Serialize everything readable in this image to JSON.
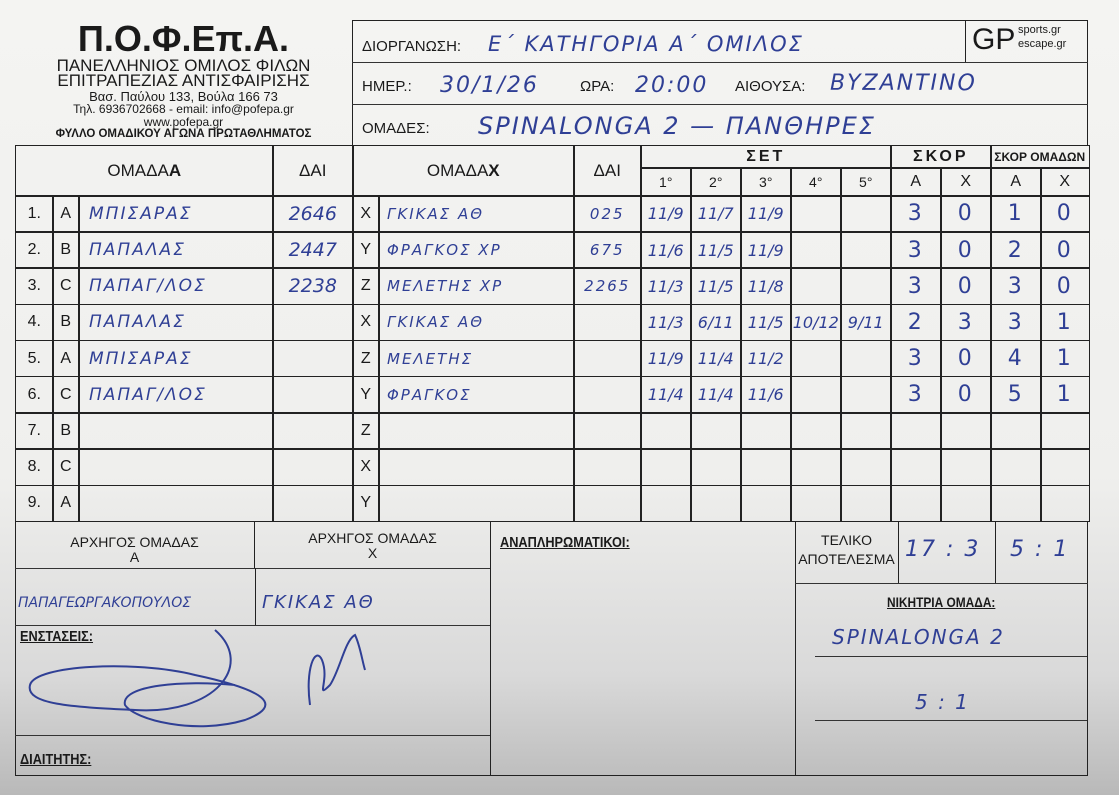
{
  "org": {
    "logo": "Π.Ο.Φ.Επ.Α.",
    "name_line1": "ΠΑΝΕΛΛΗΝΙΟΣ ΟΜΙΛΟΣ ΦΙΛΩΝ",
    "name_line2": "ΕΠΙΤΡΑΠΕΖΙΑΣ ΑΝΤΙΣΦΑΙΡΙΣΗΣ",
    "address": "Βασ. Παύλου 133, Βούλα 166 73",
    "contact": "Τηλ. 6936702668 - email: info@pofepa.gr",
    "website": "www.pofepa.gr",
    "form_title": "ΦΥΛΛΟ ΟΜΑΔΙΚΟΥ ΑΓΩΝΑ ΠΡΩΤΑΘΛΗΜΑΤΟΣ"
  },
  "sponsor": {
    "logo": "GP",
    "line1": "sports.gr",
    "line2": "escape.gr"
  },
  "match": {
    "competition_label": "ΔΙΟΡΓΑΝΩΣΗ:",
    "competition": "Ε΄ ΚΑΤΗΓΟΡΙΑ Α΄ ΟΜΙΛΟΣ",
    "date_label": "ΗΜΕΡ.:",
    "date": "30/1/26",
    "time_label": "ΩΡΑ:",
    "time": "20:00",
    "hall_label": "ΑΙΘΟΥΣΑ:",
    "hall": "ΒΥΖΑΝΤΙΝΟ",
    "teams_label": "ΟΜΑΔΕΣ:",
    "teams": "SPINALONGA 2 — ΠΑΝΘΗΡΕΣ"
  },
  "table": {
    "headers": {
      "team_a": "ΟΜΑΔΑ ",
      "team_a_bold": "Α",
      "dai": "ΔΑΙ",
      "team_x": "ΟΜΑΔΑ ",
      "team_x_bold": "Χ",
      "sets": "ΣΕΤ",
      "score": "ΣΚΟΡ",
      "team_score": "ΣΚΟΡ ΟΜΑΔΩΝ",
      "set_numbers": [
        "1°",
        "2°",
        "3°",
        "4°",
        "5°"
      ],
      "a": "Α",
      "x": "Χ"
    },
    "rows": [
      {
        "num": "1.",
        "la": "A",
        "pa": "ΜΠΙΣΑΡΑΣ",
        "da": "2646",
        "lx": "X",
        "px": "ΓΚΙΚΑΣ ΑΘ",
        "dx": "025",
        "sets": [
          "11/9",
          "11/7",
          "11/9",
          "",
          ""
        ],
        "sa": "3",
        "sx": "0",
        "ta": "1",
        "tx": "0"
      },
      {
        "num": "2.",
        "la": "B",
        "pa": "ΠΑΠΑΛΑΣ",
        "da": "2447",
        "lx": "Y",
        "px": "ΦΡΑΓΚΟΣ ΧΡ",
        "dx": "675",
        "sets": [
          "11/6",
          "11/5",
          "11/9",
          "",
          ""
        ],
        "sa": "3",
        "sx": "0",
        "ta": "2",
        "tx": "0"
      },
      {
        "num": "3.",
        "la": "C",
        "pa": "ΠΑΠΑΓ/ΛΟΣ",
        "da": "2238",
        "lx": "Z",
        "px": "ΜΕΛΕΤΗΣ ΧΡ",
        "dx": "2265",
        "sets": [
          "11/3",
          "11/5",
          "11/8",
          "",
          ""
        ],
        "sa": "3",
        "sx": "0",
        "ta": "3",
        "tx": "0"
      },
      {
        "num": "4.",
        "la": "B",
        "pa": "ΠΑΠΑΛΑΣ",
        "da": "",
        "lx": "X",
        "px": "ΓΚΙΚΑΣ ΑΘ",
        "dx": "",
        "sets": [
          "11/3",
          "6/11",
          "11/5",
          "10/12",
          "9/11"
        ],
        "sa": "2",
        "sx": "3",
        "ta": "3",
        "tx": "1"
      },
      {
        "num": "5.",
        "la": "A",
        "pa": "ΜΠΙΣΑΡΑΣ",
        "da": "",
        "lx": "Z",
        "px": "ΜΕΛΕΤΗΣ",
        "dx": "",
        "sets": [
          "11/9",
          "11/4",
          "11/2",
          "",
          ""
        ],
        "sa": "3",
        "sx": "0",
        "ta": "4",
        "tx": "1"
      },
      {
        "num": "6.",
        "la": "C",
        "pa": "ΠΑΠΑΓ/ΛΟΣ",
        "da": "",
        "lx": "Y",
        "px": "ΦΡΑΓΚΟΣ",
        "dx": "",
        "sets": [
          "11/4",
          "11/4",
          "11/6",
          "",
          ""
        ],
        "sa": "3",
        "sx": "0",
        "ta": "5",
        "tx": "1"
      },
      {
        "num": "7.",
        "la": "B",
        "pa": "",
        "da": "",
        "lx": "Z",
        "px": "",
        "dx": "",
        "sets": [
          "",
          "",
          "",
          "",
          ""
        ],
        "sa": "",
        "sx": "",
        "ta": "",
        "tx": ""
      },
      {
        "num": "8.",
        "la": "C",
        "pa": "",
        "da": "",
        "lx": "X",
        "px": "",
        "dx": "",
        "sets": [
          "",
          "",
          "",
          "",
          ""
        ],
        "sa": "",
        "sx": "",
        "ta": "",
        "tx": ""
      },
      {
        "num": "9.",
        "la": "A",
        "pa": "",
        "da": "",
        "lx": "Y",
        "px": "",
        "dx": "",
        "sets": [
          "",
          "",
          "",
          "",
          ""
        ],
        "sa": "",
        "sx": "",
        "ta": "",
        "tx": ""
      }
    ]
  },
  "footer": {
    "captain_a_label": "ΑΡΧΗΓΟΣ ΟΜΑΔΑΣ",
    "captain_a_sub": "Α",
    "captain_x_label": "ΑΡΧΗΓΟΣ ΟΜΑΔΑΣ",
    "captain_x_sub": "Χ",
    "captain_a": "ΠΑΠΑΓΕΩΡΓΑΚΟΠΟΥΛΟΣ",
    "captain_x": "ΓΚΙΚΑΣ ΑΘ",
    "objections_label": "ΕΝΣΤΑΣΕΙΣ:",
    "referee_label": "ΔΙΑΙΤΗΤΗΣ:",
    "substitutes_label": "ΑΝΑΠΛΗΡΩΜΑΤΙΚΟΙ:",
    "final_label_1": "ΤΕΛΙΚΟ",
    "final_label_2": "ΑΠΟΤΕΛΕΣΜΑ",
    "final_games": "17 : 3",
    "final_teams": "5 : 1",
    "winner_label": "ΝΙΚΗΤΡΙΑ ΟΜΑΔΑ:",
    "winner": "SPINALONGA 2",
    "winner_score": "5 : 1"
  }
}
